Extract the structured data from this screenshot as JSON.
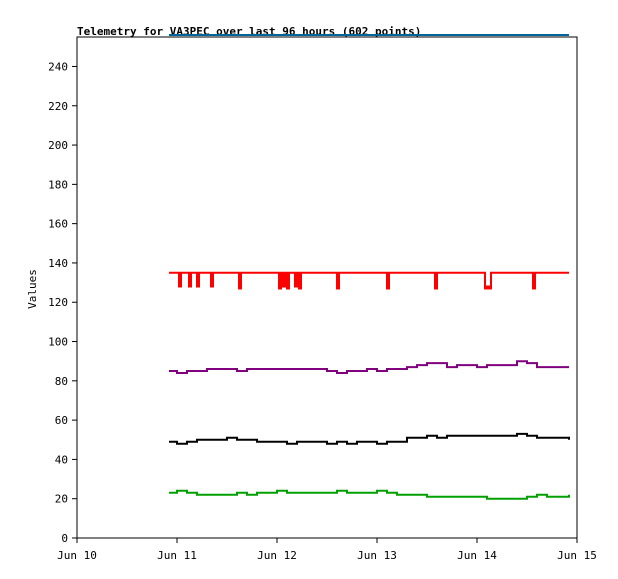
{
  "chart_data": {
    "type": "line",
    "title": "Telemetry for VA3PEC over last 96 hours (602 points)",
    "xlabel": "",
    "ylabel": "Values",
    "x_ticks": [
      "Jun 10",
      "Jun 11",
      "Jun 12",
      "Jun 13",
      "Jun 14",
      "Jun 15"
    ],
    "xlim": [
      0,
      5
    ],
    "ylim": [
      0,
      255
    ],
    "y_ticks": [
      0,
      20,
      40,
      60,
      80,
      100,
      120,
      140,
      160,
      180,
      200,
      220,
      240
    ],
    "grid": false,
    "colors": {
      "frame": "#000000",
      "top_line": "#006699",
      "red_series": "#ff0000",
      "purple_series": "#800080",
      "black_series": "#000000",
      "green_series": "#00a000"
    },
    "series": [
      {
        "color_key": "red_series",
        "x": [
          0.92,
          1.0,
          1.02,
          1.04,
          1.06,
          1.1,
          1.12,
          1.14,
          1.18,
          1.2,
          1.22,
          1.32,
          1.34,
          1.36,
          1.6,
          1.62,
          1.64,
          2.0,
          2.02,
          2.04,
          2.06,
          2.08,
          2.1,
          2.12,
          2.14,
          2.16,
          2.18,
          2.2,
          2.22,
          2.24,
          2.58,
          2.6,
          2.62,
          3.08,
          3.1,
          3.12,
          3.56,
          3.58,
          3.6,
          4.06,
          4.08,
          4.1,
          4.12,
          4.14,
          4.54,
          4.56,
          4.58,
          4.92
        ],
        "values": [
          135,
          135,
          128,
          135,
          135,
          135,
          128,
          135,
          135,
          128,
          135,
          135,
          128,
          135,
          135,
          127,
          135,
          135,
          127,
          135,
          128,
          135,
          127,
          135,
          135,
          135,
          128,
          135,
          127,
          135,
          135,
          127,
          135,
          135,
          127,
          135,
          135,
          127,
          135,
          135,
          127,
          128,
          127,
          135,
          135,
          127,
          135,
          135
        ]
      },
      {
        "color_key": "purple_series",
        "x": [
          0.92,
          1.0,
          1.1,
          1.2,
          1.3,
          1.4,
          1.5,
          1.6,
          1.7,
          1.8,
          1.9,
          2.0,
          2.1,
          2.2,
          2.3,
          2.4,
          2.5,
          2.6,
          2.7,
          2.8,
          2.9,
          3.0,
          3.1,
          3.2,
          3.3,
          3.4,
          3.5,
          3.6,
          3.7,
          3.8,
          3.9,
          4.0,
          4.1,
          4.2,
          4.3,
          4.4,
          4.5,
          4.6,
          4.7,
          4.8,
          4.92
        ],
        "values": [
          85,
          84,
          85,
          85,
          86,
          86,
          86,
          85,
          86,
          86,
          86,
          86,
          86,
          86,
          86,
          86,
          85,
          84,
          85,
          85,
          86,
          85,
          86,
          86,
          87,
          88,
          89,
          89,
          87,
          88,
          88,
          87,
          88,
          88,
          88,
          90,
          89,
          87,
          87,
          87,
          87
        ]
      },
      {
        "color_key": "black_series",
        "x": [
          0.92,
          1.0,
          1.1,
          1.2,
          1.3,
          1.4,
          1.5,
          1.6,
          1.7,
          1.8,
          1.9,
          2.0,
          2.1,
          2.2,
          2.3,
          2.4,
          2.5,
          2.6,
          2.7,
          2.8,
          2.9,
          3.0,
          3.1,
          3.2,
          3.3,
          3.4,
          3.5,
          3.6,
          3.7,
          3.8,
          3.9,
          4.0,
          4.1,
          4.2,
          4.3,
          4.4,
          4.5,
          4.6,
          4.7,
          4.8,
          4.92
        ],
        "values": [
          49,
          48,
          49,
          50,
          50,
          50,
          51,
          50,
          50,
          49,
          49,
          49,
          48,
          49,
          49,
          49,
          48,
          49,
          48,
          49,
          49,
          48,
          49,
          49,
          51,
          51,
          52,
          51,
          52,
          52,
          52,
          52,
          52,
          52,
          52,
          53,
          52,
          51,
          51,
          51,
          50
        ]
      },
      {
        "color_key": "green_series",
        "x": [
          0.92,
          1.0,
          1.1,
          1.2,
          1.3,
          1.4,
          1.5,
          1.6,
          1.7,
          1.8,
          1.9,
          2.0,
          2.1,
          2.2,
          2.3,
          2.4,
          2.5,
          2.6,
          2.7,
          2.8,
          2.9,
          3.0,
          3.1,
          3.2,
          3.3,
          3.4,
          3.5,
          3.6,
          3.7,
          3.8,
          3.9,
          4.0,
          4.1,
          4.2,
          4.3,
          4.4,
          4.5,
          4.6,
          4.7,
          4.8,
          4.92
        ],
        "values": [
          23,
          24,
          23,
          22,
          22,
          22,
          22,
          23,
          22,
          23,
          23,
          24,
          23,
          23,
          23,
          23,
          23,
          24,
          23,
          23,
          23,
          24,
          23,
          22,
          22,
          22,
          21,
          21,
          21,
          21,
          21,
          21,
          20,
          20,
          20,
          20,
          21,
          22,
          21,
          21,
          22
        ]
      }
    ],
    "top_line": {
      "x": [
        0.92,
        4.92
      ],
      "value": 256
    }
  }
}
